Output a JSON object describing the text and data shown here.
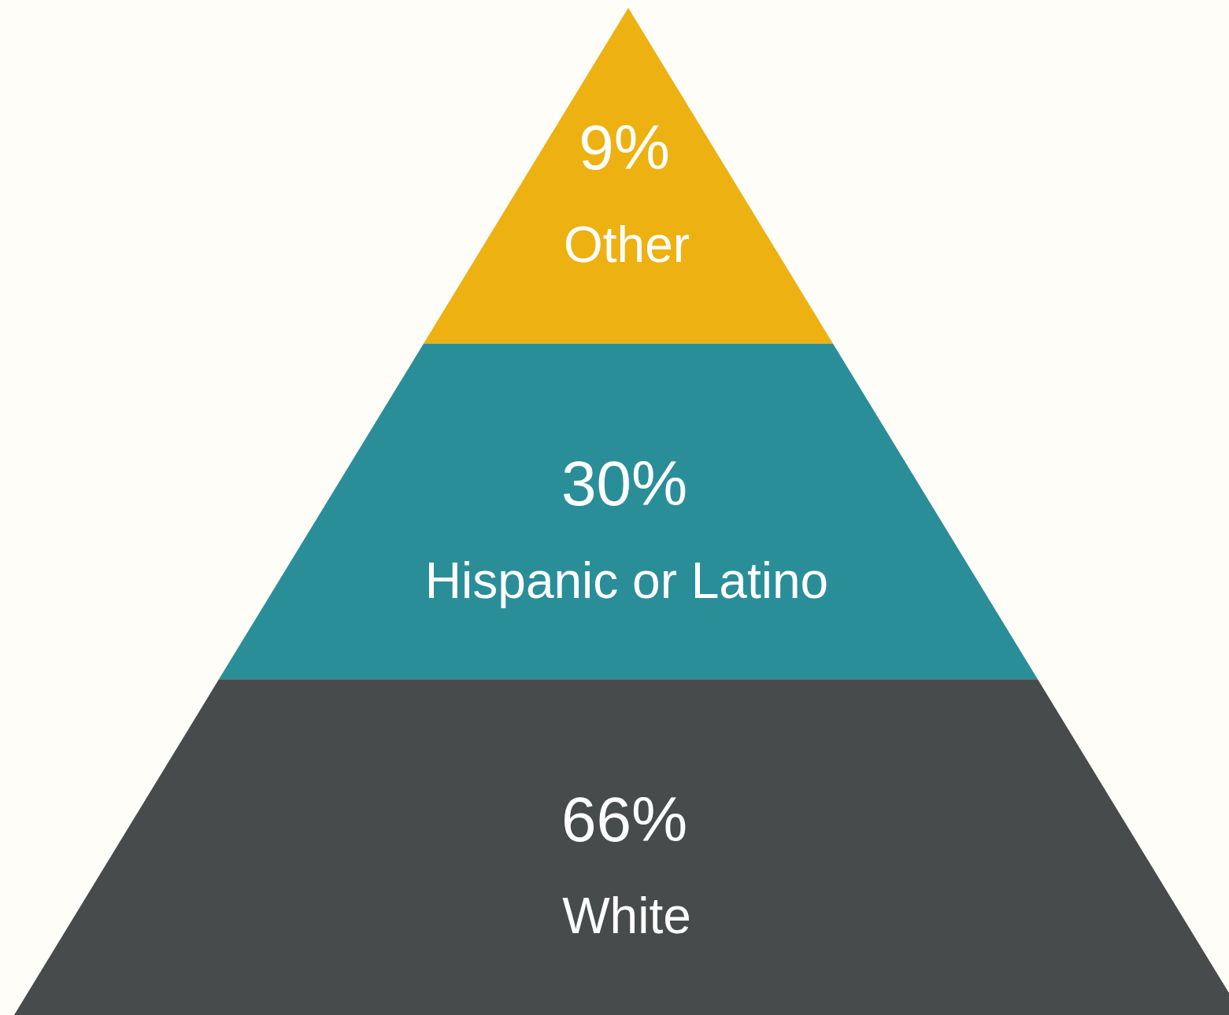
{
  "chart_data": {
    "type": "other",
    "categories": [
      "Other",
      "Hispanic or Latino",
      "White"
    ],
    "values": [
      9,
      30,
      66
    ],
    "value_labels": [
      "9%",
      "30%",
      "66%"
    ],
    "colors": [
      "#edb111",
      "#2a8e99",
      "#474b4c"
    ]
  }
}
